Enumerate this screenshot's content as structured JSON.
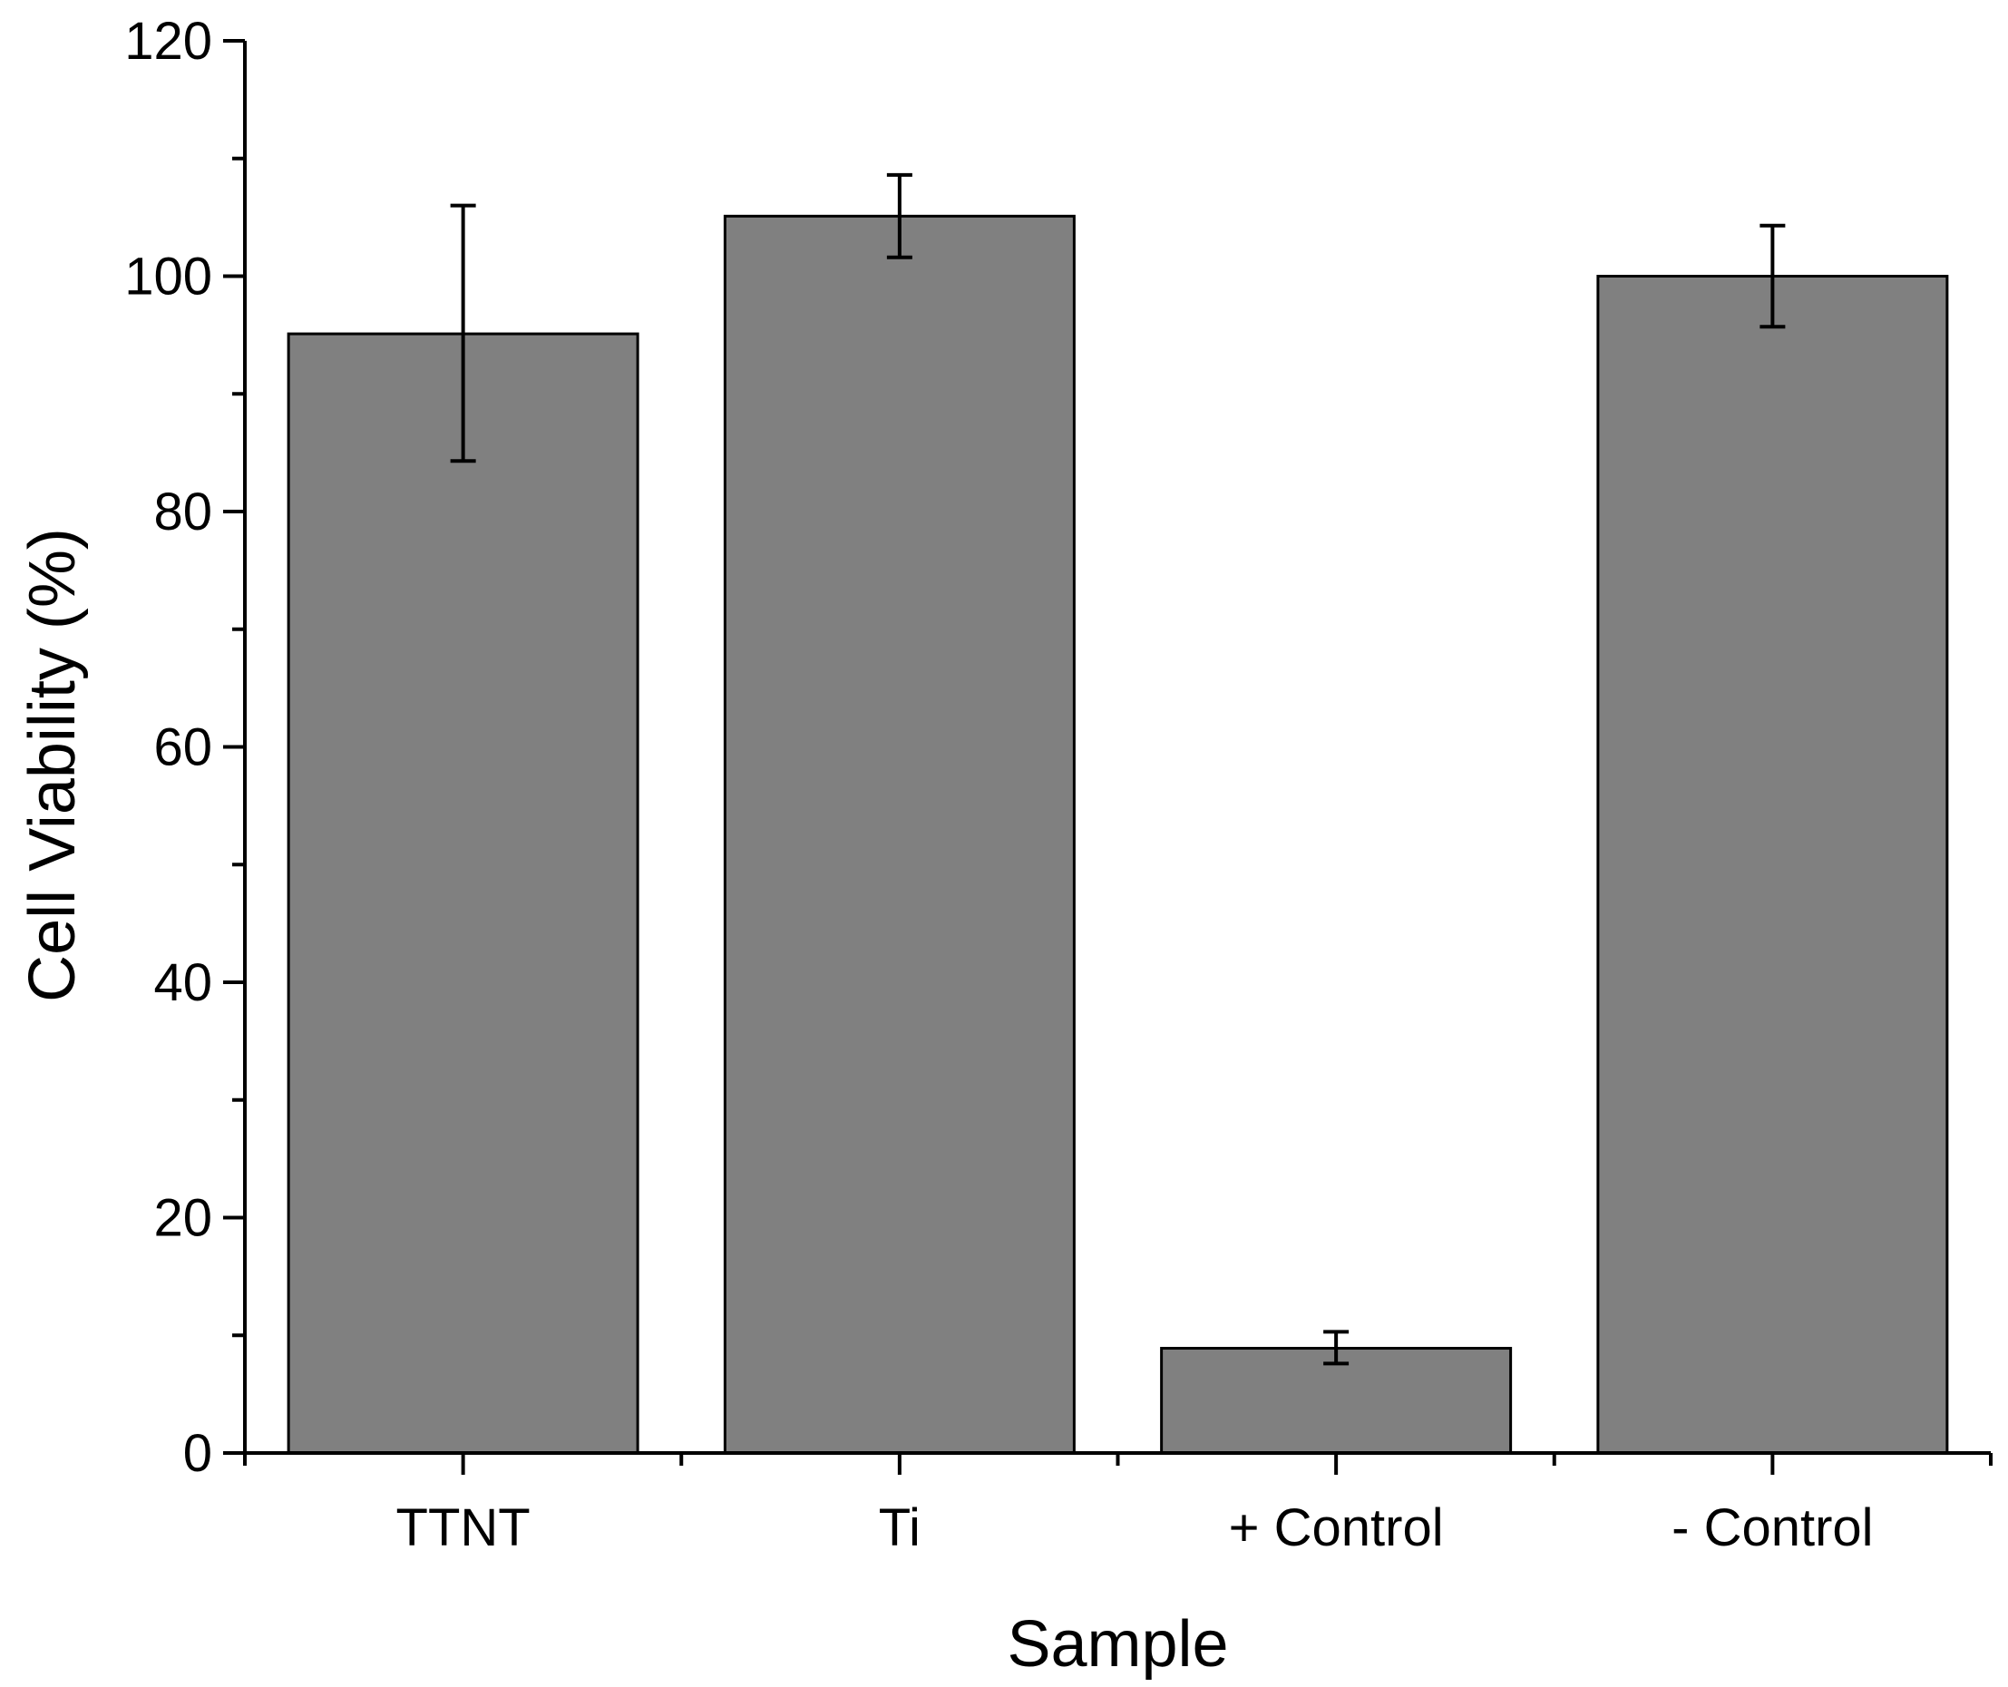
{
  "chart_data": {
    "type": "bar",
    "title": "",
    "xlabel": "Sample",
    "ylabel": "Cell Viability (%)",
    "ylim": [
      0,
      120
    ],
    "yticks": [
      0,
      20,
      40,
      60,
      80,
      100,
      120
    ],
    "grid": false,
    "categories": [
      "TTNT",
      "Ti",
      "+ Control",
      "- Control"
    ],
    "values": [
      95.1,
      105.1,
      8.9,
      100.0
    ],
    "errors": [
      {
        "low": 84.3,
        "high": 106.0
      },
      {
        "low": 101.6,
        "high": 108.6
      },
      {
        "low": 7.6,
        "high": 10.3
      },
      {
        "low": 95.7,
        "high": 104.3
      }
    ],
    "bar_color": "#808080",
    "edge_color": "#000000"
  }
}
